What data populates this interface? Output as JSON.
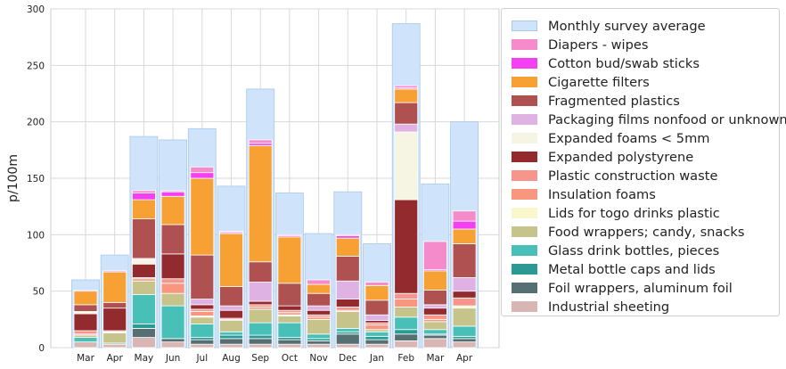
{
  "chart_data": {
    "type": "bar",
    "ylabel": "p/100m",
    "xlabel": "",
    "ylim": [
      0,
      300
    ],
    "yticks": [
      0,
      50,
      100,
      150,
      200,
      250,
      300
    ],
    "grid": true,
    "legend_position": "right",
    "categories": [
      "Mar",
      "Apr",
      "May",
      "Jun",
      "Jul",
      "Aug",
      "Sep",
      "Oct",
      "Nov",
      "Dec",
      "Jan",
      "Feb",
      "Mar",
      "Apr"
    ],
    "average": {
      "name": "Monthly survey average",
      "color": "#cfe4fb",
      "values": [
        60,
        82,
        187,
        184,
        194,
        143,
        229,
        137,
        101,
        138,
        92,
        287,
        145,
        200
      ]
    },
    "series": [
      {
        "name": "Industrial sheeting",
        "color": "#d7b6b3",
        "values": [
          5,
          3,
          9,
          5,
          3,
          3,
          3,
          3,
          3,
          3,
          3,
          6,
          8,
          5
        ]
      },
      {
        "name": "Foil wrappers, aluminum foil",
        "color": "#566f72",
        "values": [
          0,
          0,
          8,
          3,
          4,
          5,
          5,
          4,
          3,
          9,
          4,
          6,
          3,
          3
        ]
      },
      {
        "name": "Metal bottle caps and lids",
        "color": "#2c9a94",
        "values": [
          0,
          1,
          4,
          0,
          2,
          3,
          3,
          2,
          2,
          2,
          3,
          4,
          1,
          2
        ]
      },
      {
        "name": "Glass drink bottles, pieces",
        "color": "#48c0b8",
        "values": [
          4,
          0,
          26,
          29,
          12,
          3,
          11,
          13,
          4,
          3,
          4,
          11,
          4,
          9
        ]
      },
      {
        "name": "Food wrappers; candy, snacks",
        "color": "#c6c48b",
        "values": [
          2,
          9,
          12,
          11,
          6,
          10,
          12,
          6,
          13,
          15,
          2,
          9,
          7,
          16
        ]
      },
      {
        "name": "Lids for togo drinks plastic",
        "color": "#fbf7cc",
        "values": [
          0,
          1,
          0,
          0,
          1,
          0,
          0,
          1,
          0,
          0,
          0,
          0,
          0,
          2
        ]
      },
      {
        "name": "Insulation foams",
        "color": "#f9977e",
        "values": [
          1,
          0,
          2,
          9,
          4,
          1,
          2,
          2,
          2,
          1,
          4,
          7,
          2,
          0
        ]
      },
      {
        "name": "Plastic construction waste",
        "color": "#f7958c",
        "values": [
          3,
          1,
          1,
          4,
          2,
          1,
          2,
          2,
          2,
          3,
          2,
          5,
          4,
          7
        ]
      },
      {
        "name": "Expanded polystyrene",
        "color": "#922a2e",
        "values": [
          15,
          20,
          12,
          22,
          4,
          7,
          3,
          4,
          4,
          7,
          2,
          83,
          6,
          6
        ]
      },
      {
        "name": "Expanded foams < 5mm",
        "color": "#f6f4e2",
        "values": [
          2,
          0,
          4,
          0,
          0,
          0,
          0,
          0,
          0,
          0,
          0,
          60,
          0,
          0
        ]
      },
      {
        "name": "Packaging films nonfood or unknown",
        "color": "#dfb2e3",
        "values": [
          0,
          0,
          1,
          0,
          5,
          4,
          17,
          0,
          4,
          16,
          5,
          7,
          3,
          12
        ]
      },
      {
        "name": "Fragmented plastics",
        "color": "#b05151",
        "values": [
          6,
          5,
          35,
          26,
          39,
          17,
          18,
          20,
          11,
          22,
          13,
          19,
          13,
          30
        ]
      },
      {
        "name": "Cigarette filters",
        "color": "#f7a033",
        "values": [
          12,
          27,
          17,
          25,
          68,
          47,
          103,
          41,
          8,
          16,
          13,
          12,
          17,
          13
        ]
      },
      {
        "name": "Cotton bud/swab sticks",
        "color": "#f340f2",
        "values": [
          0,
          0,
          6,
          4,
          5,
          1,
          2,
          1,
          0,
          2,
          0,
          1,
          1,
          7
        ]
      },
      {
        "name": "Diapers - wipes",
        "color": "#f58bcb",
        "values": [
          1,
          1,
          2,
          1,
          5,
          1,
          3,
          1,
          4,
          1,
          3,
          2,
          25,
          9
        ]
      }
    ]
  },
  "legend_order": [
    "Monthly survey average",
    "Diapers - wipes",
    "Cotton bud/swab sticks",
    "Cigarette filters",
    "Fragmented plastics",
    "Packaging films nonfood or unknown",
    "Expanded foams < 5mm",
    "Expanded polystyrene",
    "Plastic construction waste",
    "Insulation foams",
    "Lids for togo drinks plastic",
    "Food wrappers; candy, snacks",
    "Glass drink bottles, pieces",
    "Metal bottle caps and lids",
    "Foil wrappers, aluminum foil",
    "Industrial sheeting"
  ]
}
